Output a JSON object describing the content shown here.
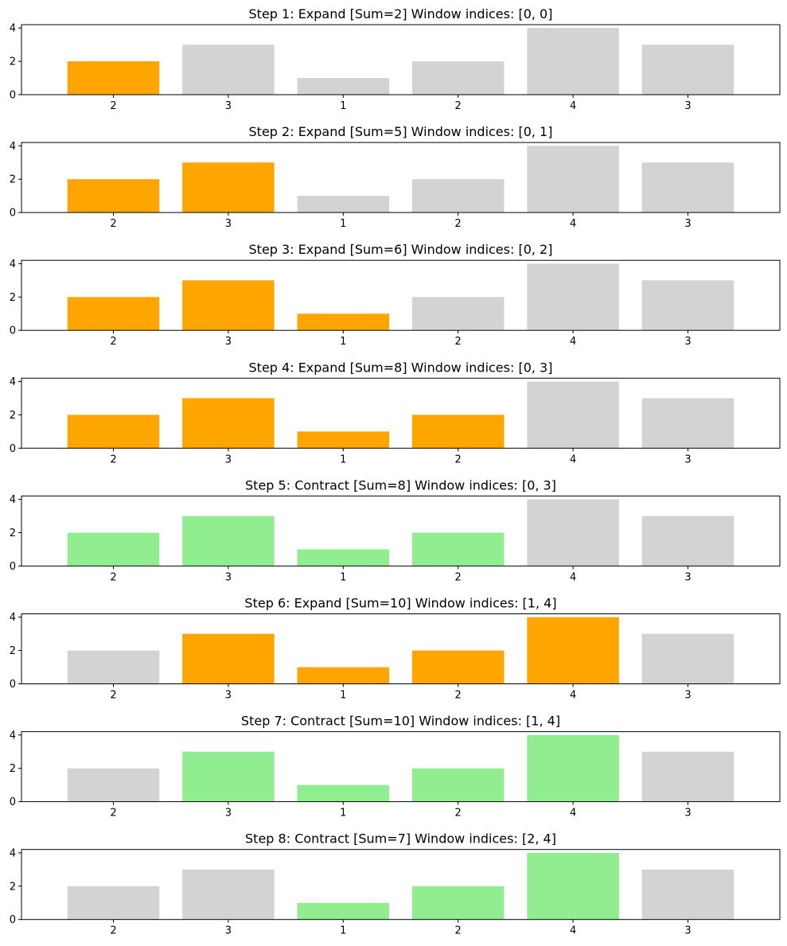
{
  "colors": {
    "expand_window": "#ffa500",
    "contract_window": "#90ee90",
    "outside_window": "#d3d3d3",
    "axes": "#000000"
  },
  "chart_data": [
    {
      "type": "bar",
      "title": "Step 1: Expand [Sum=2] Window indices: [0, 0]",
      "categories": [
        "2",
        "3",
        "1",
        "2",
        "4",
        "3"
      ],
      "values": [
        2,
        3,
        1,
        2,
        4,
        3
      ],
      "highlight": [
        true,
        false,
        false,
        false,
        false,
        false
      ],
      "highlight_color": "#ffa500",
      "base_color": "#d3d3d3",
      "yticks": [
        0,
        2,
        4
      ],
      "ylim": [
        0,
        4.2
      ]
    },
    {
      "type": "bar",
      "title": "Step 2: Expand [Sum=5] Window indices: [0, 1]",
      "categories": [
        "2",
        "3",
        "1",
        "2",
        "4",
        "3"
      ],
      "values": [
        2,
        3,
        1,
        2,
        4,
        3
      ],
      "highlight": [
        true,
        true,
        false,
        false,
        false,
        false
      ],
      "highlight_color": "#ffa500",
      "base_color": "#d3d3d3",
      "yticks": [
        0,
        2,
        4
      ],
      "ylim": [
        0,
        4.2
      ]
    },
    {
      "type": "bar",
      "title": "Step 3: Expand [Sum=6] Window indices: [0, 2]",
      "categories": [
        "2",
        "3",
        "1",
        "2",
        "4",
        "3"
      ],
      "values": [
        2,
        3,
        1,
        2,
        4,
        3
      ],
      "highlight": [
        true,
        true,
        true,
        false,
        false,
        false
      ],
      "highlight_color": "#ffa500",
      "base_color": "#d3d3d3",
      "yticks": [
        0,
        2,
        4
      ],
      "ylim": [
        0,
        4.2
      ]
    },
    {
      "type": "bar",
      "title": "Step 4: Expand [Sum=8] Window indices: [0, 3]",
      "categories": [
        "2",
        "3",
        "1",
        "2",
        "4",
        "3"
      ],
      "values": [
        2,
        3,
        1,
        2,
        4,
        3
      ],
      "highlight": [
        true,
        true,
        true,
        true,
        false,
        false
      ],
      "highlight_color": "#ffa500",
      "base_color": "#d3d3d3",
      "yticks": [
        0,
        2,
        4
      ],
      "ylim": [
        0,
        4.2
      ]
    },
    {
      "type": "bar",
      "title": "Step 5: Contract [Sum=8] Window indices: [0, 3]",
      "categories": [
        "2",
        "3",
        "1",
        "2",
        "4",
        "3"
      ],
      "values": [
        2,
        3,
        1,
        2,
        4,
        3
      ],
      "highlight": [
        true,
        true,
        true,
        true,
        false,
        false
      ],
      "highlight_color": "#90ee90",
      "base_color": "#d3d3d3",
      "yticks": [
        0,
        2,
        4
      ],
      "ylim": [
        0,
        4.2
      ]
    },
    {
      "type": "bar",
      "title": "Step 6: Expand [Sum=10] Window indices: [1, 4]",
      "categories": [
        "2",
        "3",
        "1",
        "2",
        "4",
        "3"
      ],
      "values": [
        2,
        3,
        1,
        2,
        4,
        3
      ],
      "highlight": [
        false,
        true,
        true,
        true,
        true,
        false
      ],
      "highlight_color": "#ffa500",
      "base_color": "#d3d3d3",
      "yticks": [
        0,
        2,
        4
      ],
      "ylim": [
        0,
        4.2
      ]
    },
    {
      "type": "bar",
      "title": "Step 7: Contract [Sum=10] Window indices: [1, 4]",
      "categories": [
        "2",
        "3",
        "1",
        "2",
        "4",
        "3"
      ],
      "values": [
        2,
        3,
        1,
        2,
        4,
        3
      ],
      "highlight": [
        false,
        true,
        true,
        true,
        true,
        false
      ],
      "highlight_color": "#90ee90",
      "base_color": "#d3d3d3",
      "yticks": [
        0,
        2,
        4
      ],
      "ylim": [
        0,
        4.2
      ]
    },
    {
      "type": "bar",
      "title": "Step 8: Contract [Sum=7] Window indices: [2, 4]",
      "categories": [
        "2",
        "3",
        "1",
        "2",
        "4",
        "3"
      ],
      "values": [
        2,
        3,
        1,
        2,
        4,
        3
      ],
      "highlight": [
        false,
        false,
        true,
        true,
        true,
        false
      ],
      "highlight_color": "#90ee90",
      "base_color": "#d3d3d3",
      "yticks": [
        0,
        2,
        4
      ],
      "ylim": [
        0,
        4.2
      ]
    }
  ]
}
